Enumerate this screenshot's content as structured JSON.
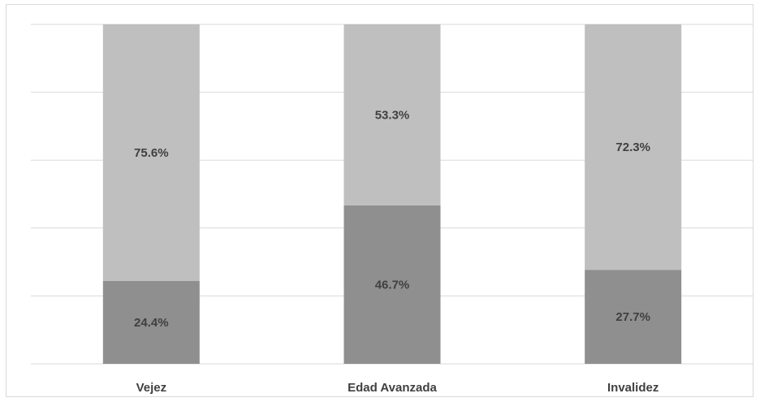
{
  "chart_data": {
    "type": "bar",
    "stacked": true,
    "percent": true,
    "categories": [
      "Vejez",
      "Edad Avanzada",
      "Invalidez"
    ],
    "series": [
      {
        "values": [
          24.4,
          46.7,
          27.7
        ],
        "labels": [
          "24.4%",
          "46.7%",
          "27.7%"
        ],
        "color": "#8f8f8f"
      },
      {
        "values": [
          75.6,
          53.3,
          72.3
        ],
        "labels": [
          "75.6%",
          "53.3%",
          "72.3%"
        ],
        "color": "#bfbfbf"
      }
    ],
    "ylim": [
      0,
      100
    ],
    "gridlines": 5,
    "grid": true,
    "legend": "none",
    "gridColor": "#d9d9d9",
    "labelColor": "#404040"
  }
}
